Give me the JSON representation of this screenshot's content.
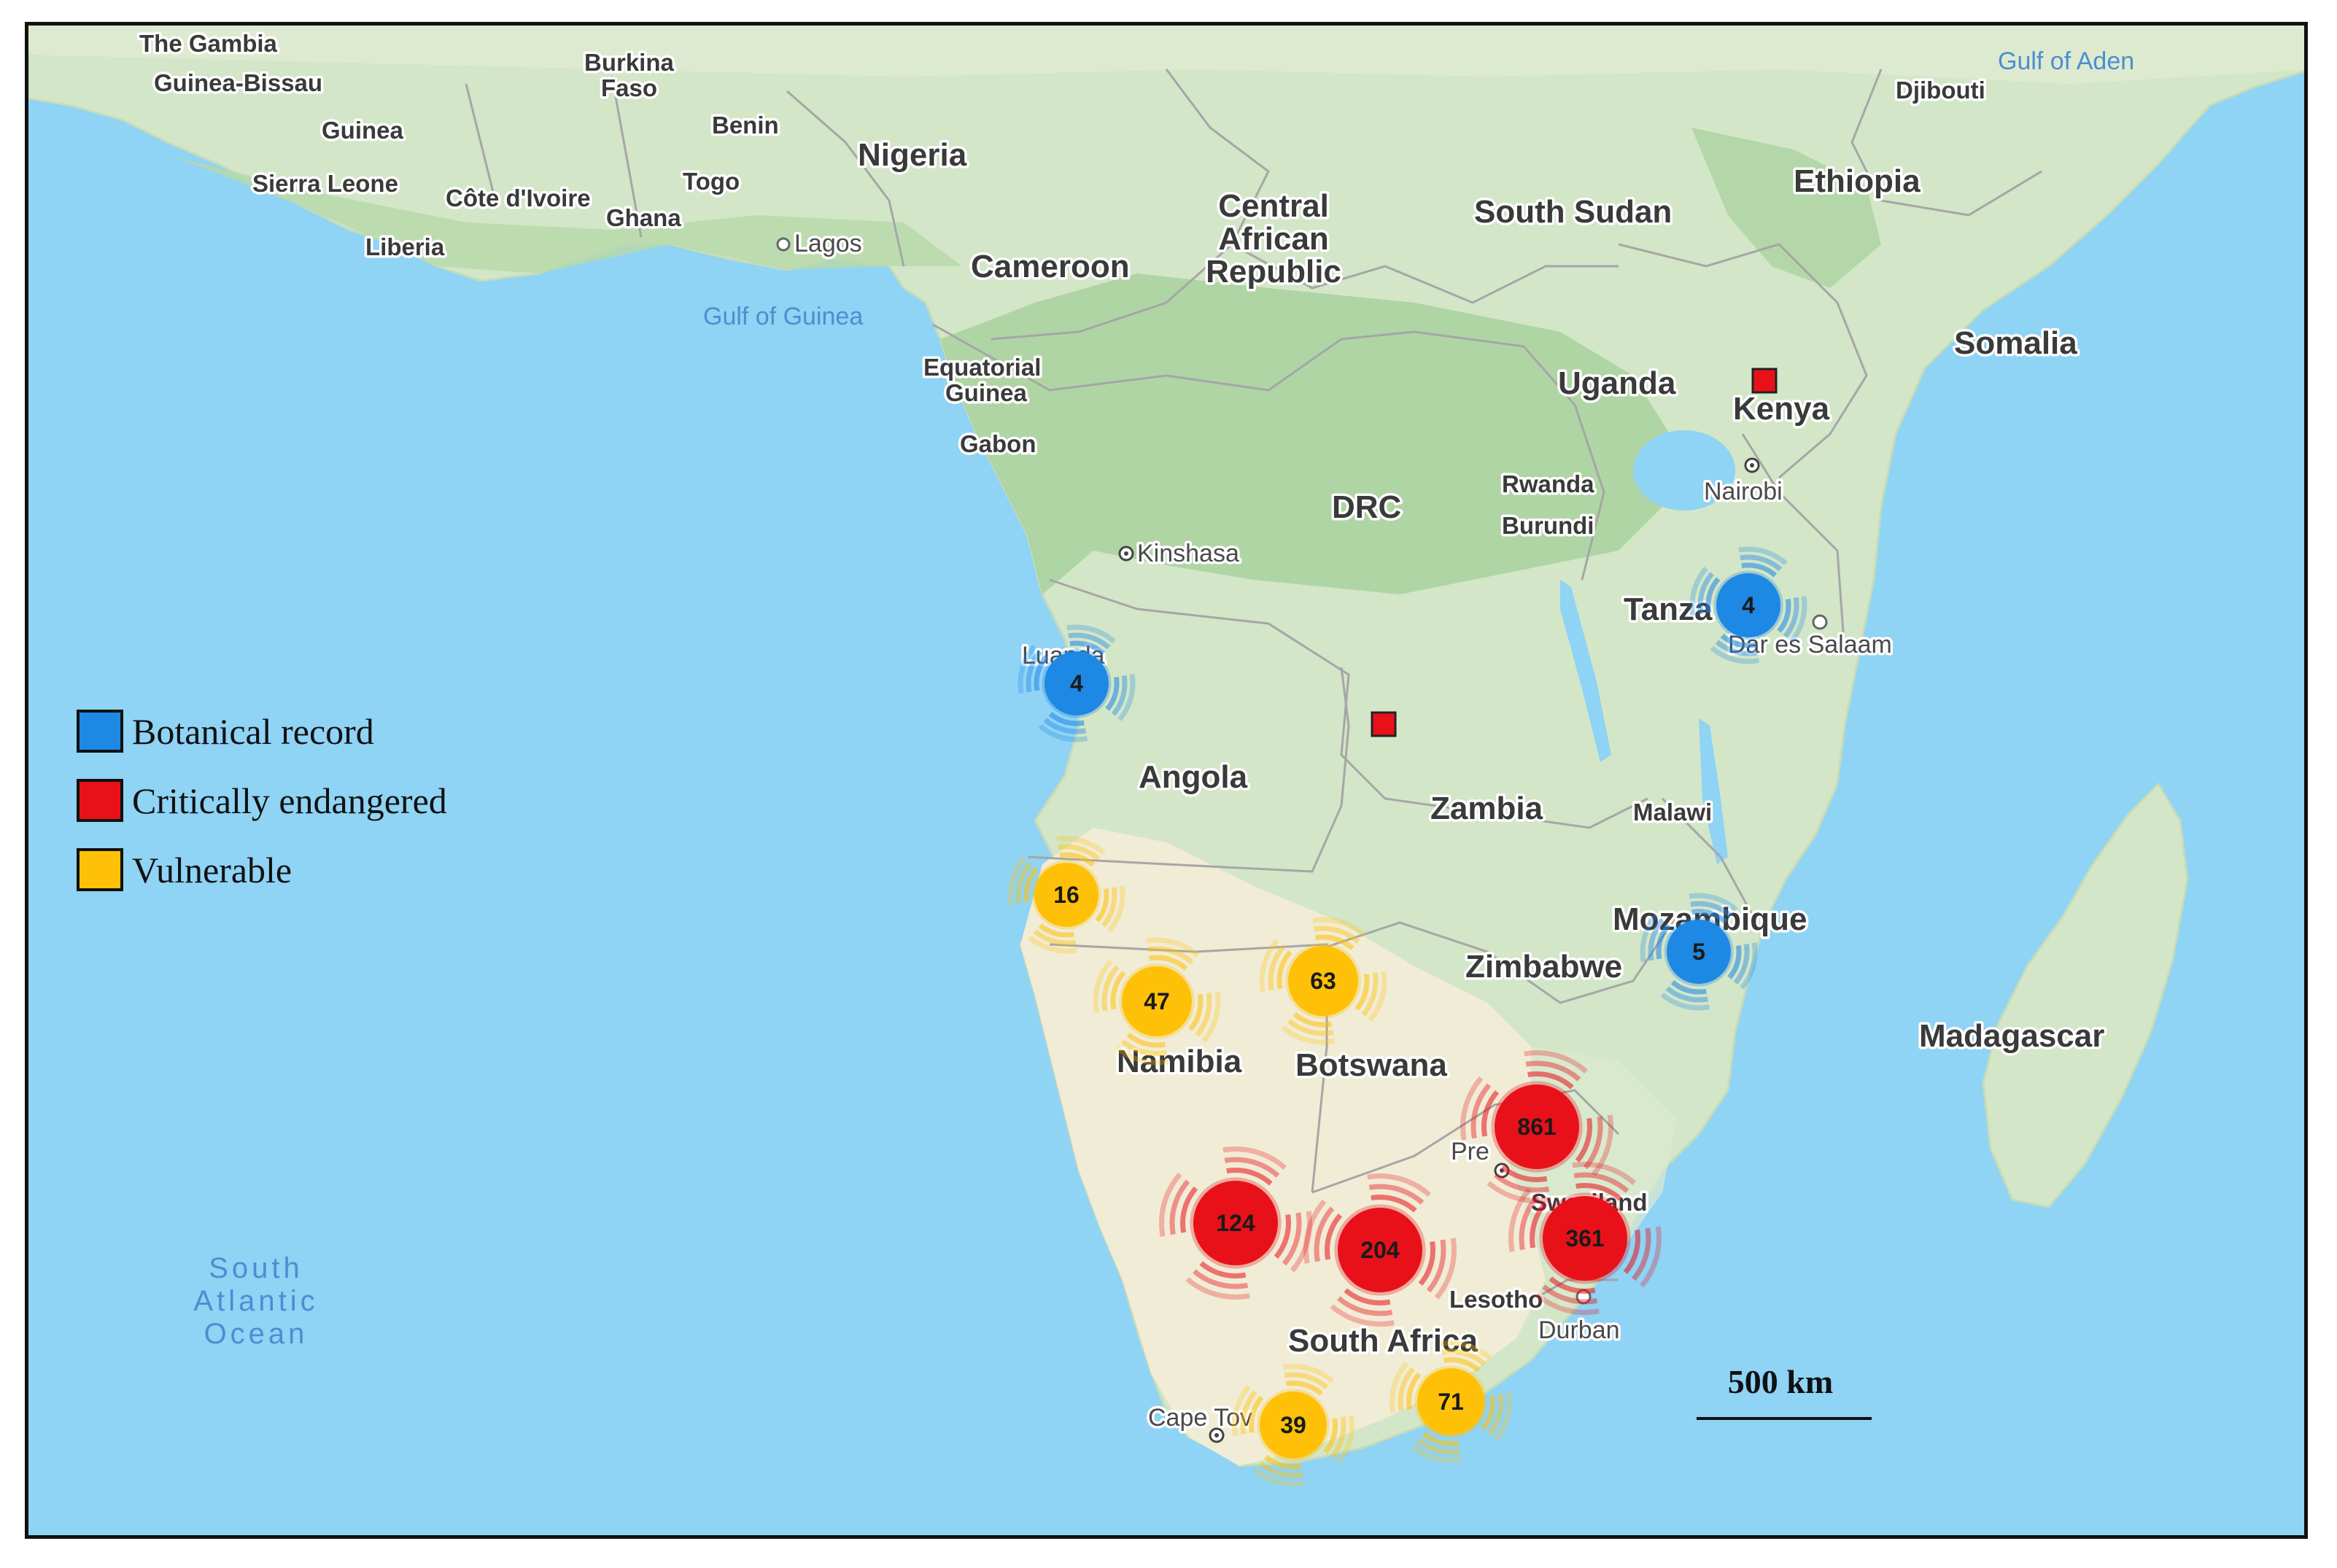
{
  "colors": {
    "ocean": "#8fd3f5",
    "land_green": "#cfe4c4",
    "forest": "#a9d2a0",
    "desert": "#f1ecd6",
    "botanical": "#1e88e5",
    "critical": "#e8111a",
    "vulnerable": "#ffc107"
  },
  "legend": {
    "items": [
      {
        "label": "Botanical record",
        "color": "#1e88e5"
      },
      {
        "label": "Critically endangered",
        "color": "#e8111a"
      },
      {
        "label": "Vulnerable",
        "color": "#ffc107"
      }
    ]
  },
  "scale_bar": {
    "label": "500 km"
  },
  "ocean_label": {
    "lines": [
      "South",
      "Atlantic",
      "Ocean"
    ]
  },
  "labels": {
    "the_gambia": "The Gambia",
    "guinea_bissau": "Guinea-Bissau",
    "guinea": "Guinea",
    "burkina_faso_1": "Burkina",
    "burkina_faso_2": "Faso",
    "benin": "Benin",
    "nigeria": "Nigeria",
    "sierra_leone": "Sierra Leone",
    "cote_divoire": "Côte d'Ivoire",
    "togo": "Togo",
    "ghana": "Ghana",
    "liberia": "Liberia",
    "lagos": "Lagos",
    "car_1": "Central",
    "car_2": "African",
    "car_3": "Republic",
    "south_sudan": "South Sudan",
    "ethiopia": "Ethiopia",
    "djibouti": "Djibouti",
    "gulf_of_aden": "Gulf of Aden",
    "cameroon": "Cameroon",
    "gulf_of_guinea": "Gulf of Guinea",
    "somalia": "Somalia",
    "eq_guinea_1": "Equatorial",
    "eq_guinea_2": "Guinea",
    "uganda": "Uganda",
    "kenya": "Kenya",
    "gabon": "Gabon",
    "rwanda": "Rwanda",
    "nairobi": "Nairobi",
    "drc": "DRC",
    "burundi": "Burundi",
    "kinshasa": "Kinshasa",
    "tanzania": "Tanza",
    "dar_es_salaam": "Dar es Salaam",
    "luanda": "Luanda",
    "angola": "Angola",
    "zambia": "Zambia",
    "malawi": "Malawi",
    "mozambique": "Mozambique",
    "zimbabwe": "Zimbabwe",
    "madagascar": "Madagascar",
    "namibia": "Namibia",
    "botswana": "Botswana",
    "pretoria": "Pre",
    "swaziland": "Swaziland",
    "lesotho": "Lesotho",
    "durban": "Durban",
    "south_africa": "South Africa",
    "cape_town": "Cape Tov"
  },
  "clusters": [
    {
      "id": "luanda",
      "category": "botanical",
      "count": "4"
    },
    {
      "id": "tanzania",
      "category": "botanical",
      "count": "4"
    },
    {
      "id": "mozambique",
      "category": "botanical",
      "count": "5"
    },
    {
      "id": "angola-south",
      "category": "vulnerable",
      "count": "16"
    },
    {
      "id": "namibia-north",
      "category": "vulnerable",
      "count": "47"
    },
    {
      "id": "botswana-north",
      "category": "vulnerable",
      "count": "63"
    },
    {
      "id": "northeast-south-africa",
      "category": "critical",
      "count": "861"
    },
    {
      "id": "northern-cape",
      "category": "critical",
      "count": "124"
    },
    {
      "id": "central-south-africa",
      "category": "critical",
      "count": "204"
    },
    {
      "id": "kwazulu-natal",
      "category": "critical",
      "count": "361"
    },
    {
      "id": "western-cape",
      "category": "vulnerable",
      "count": "39"
    },
    {
      "id": "eastern-cape",
      "category": "vulnerable",
      "count": "71"
    }
  ],
  "markers": [
    {
      "id": "kenya",
      "category": "critical"
    },
    {
      "id": "zambia-drc-border",
      "category": "critical"
    }
  ]
}
